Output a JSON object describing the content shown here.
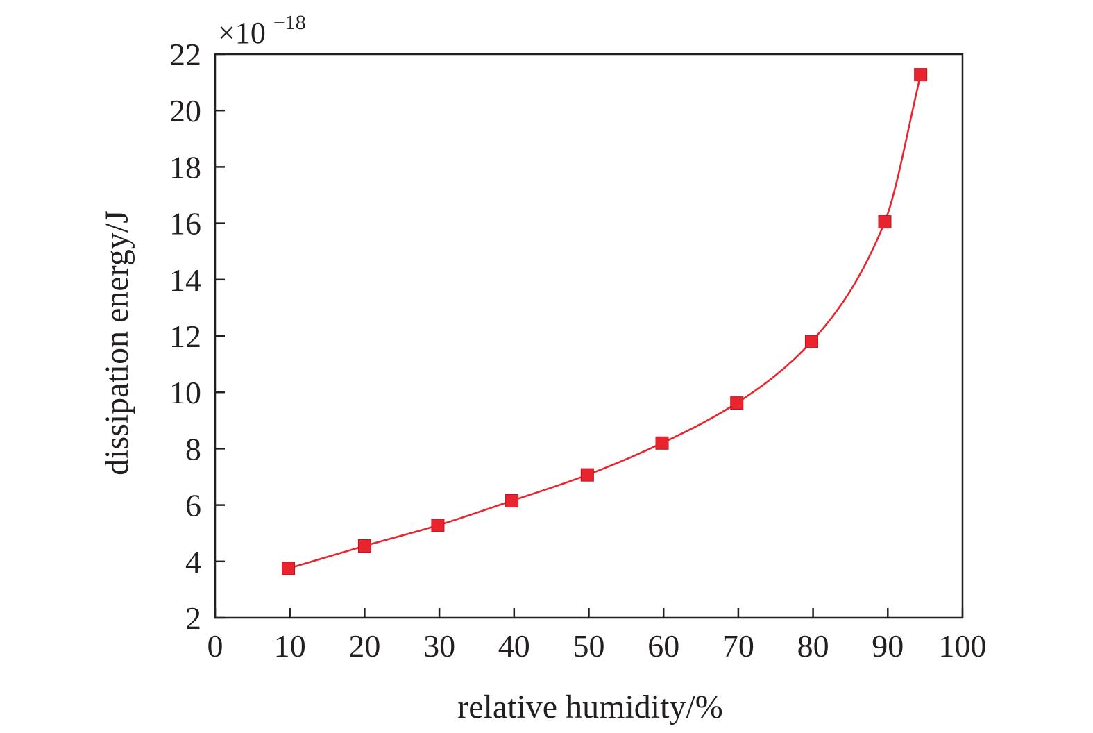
{
  "chart_data": {
    "type": "line",
    "title": "",
    "xlabel": "relative humidity/%",
    "ylabel": "dissipation energy/J",
    "y_multiplier": {
      "base": "×10",
      "exponent": "−18"
    },
    "xlim": [
      0,
      100
    ],
    "ylim": [
      2,
      22
    ],
    "x_ticks": [
      0,
      10,
      20,
      30,
      40,
      50,
      60,
      70,
      80,
      90,
      100
    ],
    "y_ticks": [
      2,
      4,
      6,
      8,
      10,
      12,
      14,
      16,
      18,
      20,
      22
    ],
    "grid": false,
    "legend": "none",
    "marker": "square",
    "series": [
      {
        "x": [
          9.8,
          20,
          29.8,
          39.7,
          49.8,
          59.8,
          69.8,
          79.8,
          89.6,
          94.4
        ],
        "values": [
          3.75,
          4.55,
          5.28,
          6.15,
          7.07,
          8.2,
          9.62,
          11.8,
          16.05,
          21.27
        ],
        "color": "#e8242f"
      }
    ]
  }
}
